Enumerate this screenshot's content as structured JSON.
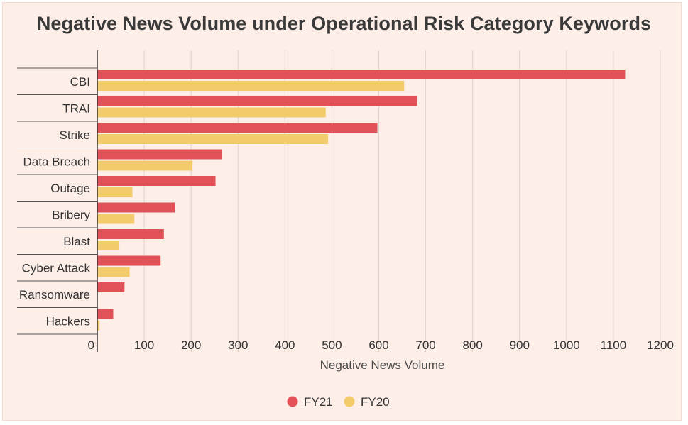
{
  "chart_data": {
    "type": "bar",
    "orientation": "horizontal",
    "title": "Negative News Volume under Operational Risk Category Keywords",
    "xlabel": "Negative News Volume",
    "ylabel": "",
    "xlim": [
      0,
      1200
    ],
    "ticks": [
      0,
      100,
      200,
      300,
      400,
      500,
      600,
      700,
      800,
      900,
      1000,
      1100,
      1200
    ],
    "categories": [
      "CBI",
      "TRAI",
      "Strike",
      "Data Breach",
      "Outage",
      "Bribery",
      "Blast",
      "Cyber Attack",
      "Ransomware",
      "Hackers"
    ],
    "series": [
      {
        "name": "FY21",
        "color": "#e05257",
        "values": [
          1125,
          682,
          597,
          265,
          252,
          165,
          142,
          135,
          58,
          34
        ]
      },
      {
        "name": "FY20",
        "color": "#f2cc6b",
        "values": [
          654,
          487,
          492,
          203,
          75,
          79,
          47,
          69,
          0,
          5
        ]
      }
    ],
    "grid": true,
    "legend_position": "bottom-center"
  }
}
